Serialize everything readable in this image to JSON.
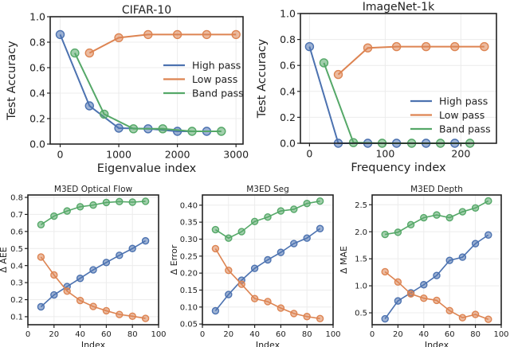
{
  "colors": {
    "high": "#4C72B0",
    "low": "#DD8452",
    "band": "#55A868"
  },
  "chart_data": [
    {
      "type": "line",
      "title": "CIFAR-10",
      "xlabel": "Eigenvalue index",
      "ylabel": "Test Accuracy",
      "xlim": [
        -170,
        3120
      ],
      "ylim": [
        0,
        1.0
      ],
      "xticks": [
        "0",
        "1000",
        "2000",
        "3000"
      ],
      "yticks": [
        "0.0",
        "0.2",
        "0.4",
        "0.6",
        "0.8",
        "1.0"
      ],
      "grid": true,
      "legend": "center-right",
      "series": [
        {
          "key": "high",
          "name": "High pass",
          "x": [
            0,
            500,
            1000,
            1500,
            2000,
            2500
          ],
          "y": [
            0.86,
            0.3,
            0.125,
            0.12,
            0.1,
            0.1
          ]
        },
        {
          "key": "low",
          "name": "Low pass",
          "x": [
            500,
            1000,
            1500,
            2000,
            2500,
            3000
          ],
          "y": [
            0.715,
            0.835,
            0.86,
            0.86,
            0.86,
            0.86
          ]
        },
        {
          "key": "band",
          "name": "Band pass",
          "x": [
            250,
            750,
            1250,
            1750,
            2250,
            2750
          ],
          "y": [
            0.715,
            0.235,
            0.12,
            0.12,
            0.1,
            0.1
          ]
        }
      ]
    },
    {
      "type": "line",
      "title": "ImageNet-1k",
      "xlabel": "Frequency index",
      "ylabel": "Test Accuracy",
      "xlim": [
        -12,
        247
      ],
      "ylim": [
        0,
        1.0
      ],
      "xticks": [
        "0",
        "100",
        "200"
      ],
      "yticks": [
        "0.0",
        "0.2",
        "0.4",
        "0.6",
        "0.8",
        "1.0"
      ],
      "grid": true,
      "legend": "lower-right",
      "series": [
        {
          "key": "high",
          "name": "High pass",
          "x": [
            0,
            38,
            77,
            115,
            154,
            192
          ],
          "y": [
            0.745,
            0.0,
            0.0,
            0.0,
            0.0,
            0.0
          ]
        },
        {
          "key": "low",
          "name": "Low pass",
          "x": [
            38,
            77,
            115,
            154,
            192,
            231
          ],
          "y": [
            0.53,
            0.735,
            0.745,
            0.745,
            0.745,
            0.745
          ]
        },
        {
          "key": "band",
          "name": "Band pass",
          "x": [
            19,
            58,
            96,
            135,
            173,
            212
          ],
          "y": [
            0.62,
            0.005,
            0.0,
            0.0,
            0.0,
            0.0
          ]
        }
      ]
    },
    {
      "type": "line",
      "title": "M3ED Optical Flow",
      "xlabel": "Index",
      "ylabel": "Δ AEE",
      "xlim": [
        0,
        100
      ],
      "ylim": [
        0.053,
        0.814
      ],
      "xticks": [
        "0",
        "20",
        "40",
        "60",
        "80",
        "100"
      ],
      "yticks": [
        "0.1",
        "0.2",
        "0.3",
        "0.4",
        "0.5",
        "0.6",
        "0.7",
        "0.8"
      ],
      "grid": true,
      "legend": "none",
      "series": [
        {
          "key": "high",
          "x": [
            10,
            20,
            30,
            40,
            50,
            60,
            70,
            80,
            90
          ],
          "y": [
            0.158,
            0.228,
            0.277,
            0.325,
            0.375,
            0.418,
            0.46,
            0.5,
            0.545
          ]
        },
        {
          "key": "low",
          "x": [
            10,
            20,
            30,
            40,
            50,
            60,
            70,
            80,
            90
          ],
          "y": [
            0.45,
            0.345,
            0.25,
            0.195,
            0.16,
            0.135,
            0.113,
            0.103,
            0.09
          ]
        },
        {
          "key": "band",
          "x": [
            10,
            20,
            30,
            40,
            50,
            60,
            70,
            80,
            90
          ],
          "y": [
            0.64,
            0.69,
            0.72,
            0.745,
            0.755,
            0.77,
            0.775,
            0.772,
            0.777
          ]
        }
      ]
    },
    {
      "type": "line",
      "title": "M3ED Seg",
      "xlabel": "Index",
      "ylabel": "Δ Error",
      "xlim": [
        0,
        100
      ],
      "ylim": [
        0.048,
        0.43
      ],
      "xticks": [
        "0",
        "20",
        "40",
        "60",
        "80",
        "100"
      ],
      "yticks": [
        "0.05",
        "0.10",
        "0.15",
        "0.20",
        "0.25",
        "0.30",
        "0.35",
        "0.40"
      ],
      "grid": true,
      "legend": "none",
      "series": [
        {
          "key": "high",
          "x": [
            10,
            20,
            30,
            40,
            50,
            60,
            70,
            80,
            90
          ],
          "y": [
            0.089,
            0.137,
            0.179,
            0.214,
            0.239,
            0.261,
            0.287,
            0.303,
            0.331
          ]
        },
        {
          "key": "low",
          "x": [
            10,
            20,
            30,
            40,
            50,
            60,
            70,
            80,
            90
          ],
          "y": [
            0.272,
            0.208,
            0.167,
            0.125,
            0.116,
            0.097,
            0.081,
            0.072,
            0.066
          ]
        },
        {
          "key": "band",
          "x": [
            10,
            20,
            30,
            40,
            50,
            60,
            70,
            80,
            90
          ],
          "y": [
            0.328,
            0.303,
            0.322,
            0.352,
            0.365,
            0.383,
            0.388,
            0.405,
            0.412
          ]
        }
      ]
    },
    {
      "type": "line",
      "title": "M3ED Depth",
      "xlabel": "Index",
      "ylabel": "Δ MAE",
      "xlim": [
        0,
        100
      ],
      "ylim": [
        0.28,
        2.68
      ],
      "xticks": [
        "0",
        "20",
        "40",
        "60",
        "80",
        "100"
      ],
      "yticks": [
        "0.5",
        "1.0",
        "1.5",
        "2.0",
        "2.5"
      ],
      "grid": true,
      "legend": "none",
      "series": [
        {
          "key": "high",
          "x": [
            10,
            20,
            30,
            40,
            50,
            60,
            70,
            80,
            90
          ],
          "y": [
            0.39,
            0.72,
            0.87,
            1.02,
            1.19,
            1.47,
            1.53,
            1.78,
            1.94
          ]
        },
        {
          "key": "low",
          "x": [
            10,
            20,
            30,
            40,
            50,
            60,
            70,
            80,
            90
          ],
          "y": [
            1.26,
            1.07,
            0.85,
            0.77,
            0.73,
            0.54,
            0.41,
            0.47,
            0.38
          ]
        },
        {
          "key": "band",
          "x": [
            10,
            20,
            30,
            40,
            50,
            60,
            70,
            80,
            90
          ],
          "y": [
            1.95,
            1.99,
            2.13,
            2.26,
            2.31,
            2.26,
            2.37,
            2.44,
            2.57
          ]
        }
      ]
    }
  ]
}
